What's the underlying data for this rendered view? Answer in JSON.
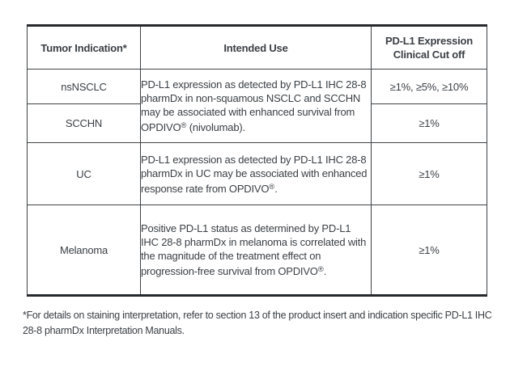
{
  "table": {
    "columns": [
      {
        "label": "Tumor Indication*"
      },
      {
        "label": "Intended Use"
      },
      {
        "label": "PD-L1 Expression Clinical Cut off"
      }
    ],
    "rows": [
      {
        "indication": "nsNSCLC",
        "cutoff": "≥1%, ≥5%, ≥10%"
      },
      {
        "indication": "SCCHN",
        "cutoff": "≥1%"
      },
      {
        "indication": "UC",
        "cutoff": "≥1%"
      },
      {
        "indication": "Melanoma",
        "cutoff": "≥1%"
      }
    ],
    "intended_use": [
      {
        "pre": "PD-L1 expression as detected by PD-L1 IHC 28-8 pharmDx in non-squamous NSCLC and SCCHN may be associated with enhanced survival from OPDIVO",
        "reg_mark": "®",
        "post": " (nivolumab)."
      },
      {
        "pre": "PD-L1 expression as detected by PD-L1 IHC 28-8 pharmDx in UC may be associated with enhanced response rate from OPDIVO",
        "reg_mark": "®",
        "post": "."
      },
      {
        "pre": "Positive PD-L1 status as determined by PD-L1 IHC 28-8 pharmDx in melanoma is correlated with the magnitude of the treatment effect on progression-free survival from OPDIVO",
        "reg_mark": "®",
        "post": "."
      }
    ]
  },
  "footnote": "*For details on staining interpretation, refer to section 13 of the product insert and indication specific PD-L1 IHC 28-8 pharmDx Interpretation Manuals.",
  "colors": {
    "background": "#ffffff",
    "text": "#3b4045",
    "border_thin": "#3f4245",
    "border_thick": "#26292c"
  }
}
